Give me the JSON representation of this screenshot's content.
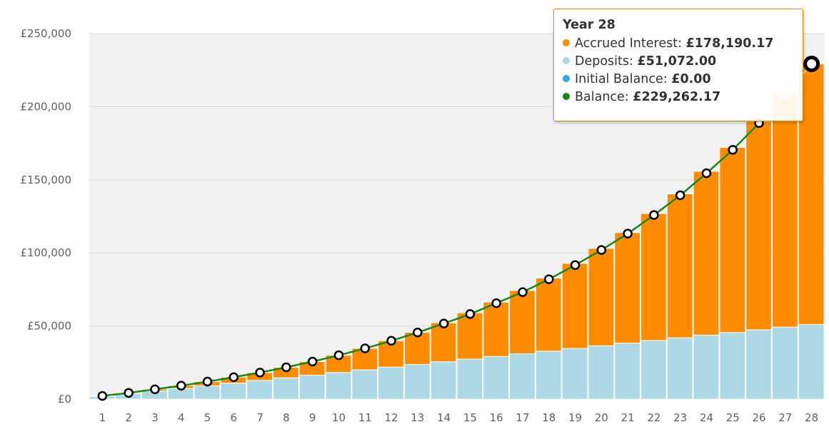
{
  "chart_data": {
    "type": "bar",
    "title": "",
    "xlabel": "",
    "ylabel": "",
    "ylim": [
      0,
      250000
    ],
    "yticks": [
      0,
      50000,
      100000,
      150000,
      200000,
      250000
    ],
    "ytick_labels": [
      "£0",
      "£50,000",
      "£100,000",
      "£150,000",
      "£200,000",
      "£250,000"
    ],
    "categories": [
      "1",
      "2",
      "3",
      "4",
      "5",
      "6",
      "7",
      "8",
      "9",
      "10",
      "11",
      "12",
      "13",
      "14",
      "15",
      "16",
      "17",
      "18",
      "19",
      "20",
      "21",
      "22",
      "23",
      "24",
      "25",
      "26",
      "27",
      "28"
    ],
    "series": [
      {
        "name": "Deposits",
        "kind": "bar-stack",
        "color": "#add8e6",
        "values": [
          1824,
          3648,
          5472,
          7296,
          9120,
          10944,
          12768,
          14592,
          16416,
          18240,
          20064,
          21888,
          23712,
          25536,
          27360,
          29184,
          31008,
          32832,
          34656,
          36480,
          38304,
          40128,
          41952,
          43776,
          45600,
          47424,
          49248,
          51072
        ]
      },
      {
        "name": "Accrued Interest",
        "kind": "bar-stack",
        "color": "#ff8c00",
        "values": [
          400,
          700,
          1300,
          2000,
          2900,
          4100,
          5400,
          7200,
          9300,
          11800,
          14700,
          18100,
          22000,
          26700,
          31700,
          37200,
          43300,
          50000,
          58200,
          66600,
          75600,
          86800,
          98400,
          112000,
          126500,
          142500,
          158700,
          178190
        ]
      },
      {
        "name": "Balance",
        "kind": "line",
        "color": "#138a13",
        "values": [
          2200,
          4300,
          6700,
          9200,
          12000,
          15000,
          18200,
          21800,
          25700,
          30000,
          34700,
          39900,
          45600,
          51700,
          58200,
          65600,
          73200,
          82000,
          91700,
          102000,
          113200,
          125900,
          139400,
          154500,
          170500,
          188800,
          208000,
          229262
        ]
      }
    ],
    "tooltip": {
      "title": "Year 28",
      "rows": [
        {
          "label": "Accrued Interest:",
          "value": "£178,190.17",
          "color": "#ff8c00"
        },
        {
          "label": "Deposits:",
          "value": "£51,072.00",
          "color": "#add8e6"
        },
        {
          "label": "Initial Balance:",
          "value": "£0.00",
          "color": "#2ca8e8"
        },
        {
          "label": "Balance:",
          "value": "£229,262.17",
          "color": "#138a13"
        }
      ]
    },
    "highlight_index": 27,
    "grid": true,
    "background": "#f2f2f2"
  }
}
